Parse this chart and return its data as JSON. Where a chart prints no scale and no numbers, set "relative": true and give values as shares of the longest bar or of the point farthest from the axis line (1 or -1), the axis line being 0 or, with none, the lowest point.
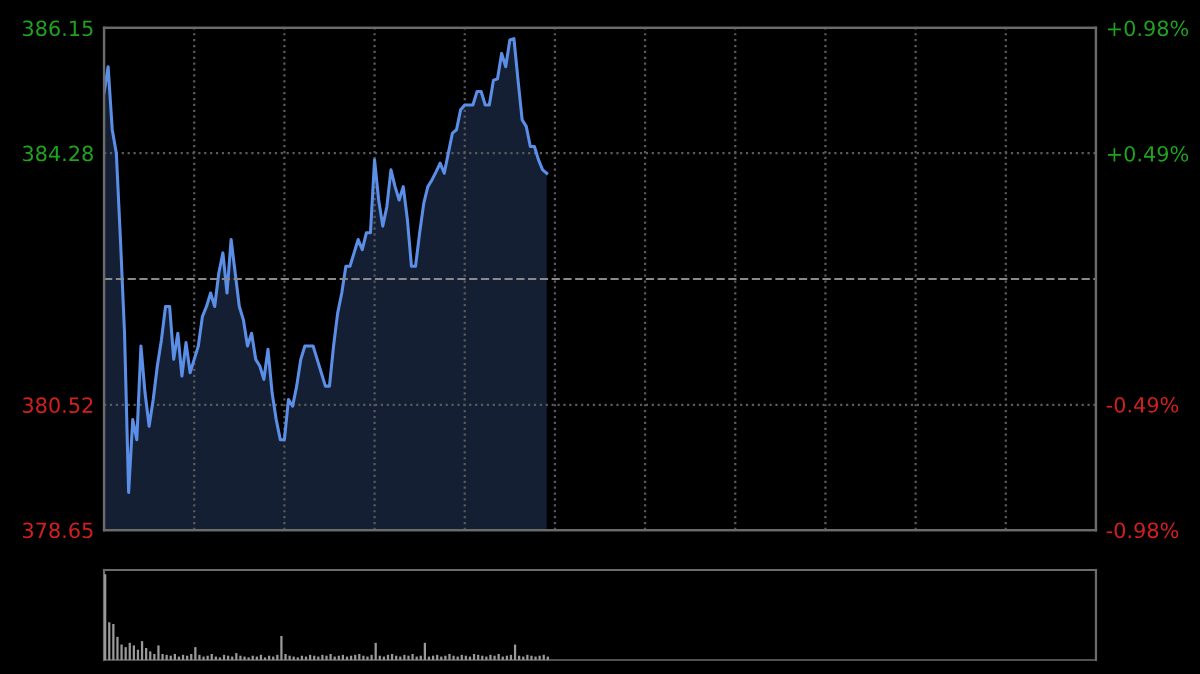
{
  "chart_data": [
    {
      "type": "area",
      "categories": [
        null,
        null,
        null,
        null,
        null,
        null,
        null,
        null,
        null,
        null,
        null,
        null,
        null,
        null,
        null,
        null,
        null,
        null,
        null,
        null,
        null,
        null,
        null,
        null,
        null,
        null,
        null,
        null,
        null,
        null,
        null,
        null,
        null,
        null,
        null,
        null,
        null,
        null,
        null,
        null,
        null,
        null,
        null,
        null,
        null,
        null,
        null,
        null,
        null,
        null,
        null,
        null,
        null,
        null,
        null,
        null,
        null,
        null,
        null,
        null,
        null,
        null,
        null,
        null,
        null,
        null,
        null,
        null,
        null,
        null,
        null,
        null,
        null,
        null,
        null,
        null,
        null,
        null,
        null,
        null,
        null,
        null,
        null,
        null,
        null,
        null,
        null,
        null,
        null,
        null,
        null,
        null,
        null,
        null,
        null,
        null,
        null,
        null,
        null,
        null,
        null,
        null,
        null,
        null,
        null,
        null,
        null,
        null,
        null,
        null,
        null,
        null,
        null,
        null,
        null,
        null,
        null,
        null,
        null,
        null,
        null,
        null,
        null,
        null,
        null,
        null,
        null,
        null,
        null,
        null,
        null,
        null,
        null,
        null,
        null,
        null,
        null,
        null,
        null,
        null,
        null,
        null,
        null,
        null,
        null,
        null,
        null,
        null,
        null,
        null,
        null,
        null,
        null,
        null,
        null,
        null,
        null,
        null,
        null,
        null,
        null,
        null,
        null,
        null,
        null,
        null,
        null,
        null,
        null,
        null,
        null,
        null,
        null,
        null,
        null,
        null,
        null,
        null,
        null,
        null,
        null,
        null,
        null,
        null,
        null,
        null,
        null,
        null,
        null,
        null,
        null,
        null,
        null,
        null,
        null,
        null,
        null,
        null,
        null,
        null,
        null,
        null,
        null,
        null,
        null,
        null,
        null,
        null,
        null,
        null,
        null,
        null,
        null,
        null,
        null,
        null,
        null,
        null,
        null,
        null,
        null,
        null,
        null,
        null,
        null,
        null,
        null,
        null,
        null,
        null,
        null,
        null,
        null,
        null,
        null,
        null,
        null,
        null,
        null,
        null,
        null,
        null,
        null
      ],
      "ylim": [
        378.65,
        386.15
      ],
      "yticks": [
        378.65,
        380.52,
        384.28,
        386.15
      ],
      "y2lim": [
        -0.98,
        0.98
      ],
      "y2ticks": [
        {
          "value": -0.98,
          "label": "-0.98%"
        },
        {
          "value": -0.49,
          "label": "-0.49%"
        },
        {
          "value": 0.49,
          "label": "+0.49%"
        },
        {
          "value": 0.98,
          "label": "+0.98%"
        }
      ],
      "grid": true,
      "ref_lines": [
        {
          "axis": "y",
          "value": 382.4,
          "line_style": "dashed",
          "color": "#8a8a8a"
        }
      ],
      "series": [
        {
          "color": "#5b8ee6",
          "values": [
            385.18,
            385.57,
            384.63,
            384.28,
            382.99,
            381.59,
            379.21,
            380.3,
            380.0,
            381.4,
            380.7,
            380.2,
            380.6,
            381.1,
            381.49,
            381.99,
            381.99,
            381.2,
            381.59,
            380.95,
            381.45,
            381.0,
            381.2,
            381.4,
            381.84,
            381.99,
            382.19,
            381.99,
            382.49,
            382.79,
            382.19,
            382.99,
            382.49,
            381.99,
            381.79,
            381.4,
            381.59,
            381.2,
            381.1,
            380.9,
            381.35,
            380.7,
            380.3,
            380.0,
            380.0,
            380.6,
            380.5,
            380.8,
            381.2,
            381.4,
            381.4,
            381.4,
            381.2,
            381.0,
            380.8,
            380.8,
            381.4,
            381.89,
            382.19,
            382.59,
            382.59,
            382.79,
            382.99,
            382.84,
            383.09,
            383.09,
            384.18,
            383.58,
            383.19,
            383.48,
            384.03,
            383.78,
            383.58,
            383.78,
            383.29,
            382.59,
            382.59,
            383.09,
            383.53,
            383.78,
            383.88,
            384.0,
            384.13,
            383.98,
            384.28,
            384.58,
            384.63,
            384.93,
            385.0,
            385.0,
            385.0,
            385.2,
            385.2,
            385.0,
            385.0,
            385.37,
            385.39,
            385.77,
            385.57,
            385.97,
            385.99,
            385.37,
            384.78,
            384.68,
            384.38,
            384.38,
            384.18,
            384.03,
            383.98,
            null,
            null,
            null,
            null,
            null,
            null,
            null,
            null,
            null,
            null,
            null,
            null,
            null,
            null,
            null,
            null,
            null,
            null,
            null,
            null,
            null,
            null,
            null,
            null,
            null,
            null,
            null,
            null,
            null,
            null,
            null,
            null,
            null,
            null,
            null,
            null,
            null,
            null,
            null,
            null,
            null,
            null,
            null,
            null,
            null,
            null,
            null,
            null,
            null,
            null,
            null,
            null,
            null,
            null,
            null,
            null,
            null,
            null,
            null,
            null,
            null,
            null,
            null,
            null,
            null,
            null,
            null,
            null,
            null,
            null,
            null,
            null,
            null,
            null,
            null,
            null,
            null,
            null,
            null,
            null,
            null,
            null,
            null,
            null,
            null,
            null,
            null,
            null,
            null,
            null,
            null,
            null,
            null,
            null,
            null,
            null,
            null,
            null,
            null,
            null,
            null,
            null,
            null,
            null,
            null,
            null,
            null,
            null,
            null,
            null,
            null,
            null,
            null,
            null,
            null,
            null,
            null,
            null,
            null,
            null,
            null,
            null,
            null,
            null,
            null,
            null,
            null,
            null,
            null,
            null,
            null,
            null,
            null,
            null
          ]
        }
      ]
    },
    {
      "type": "bar",
      "relative": true,
      "color": "#9a9a9a",
      "categories": [
        null,
        null,
        null,
        null,
        null,
        null,
        null,
        null,
        null,
        null,
        null,
        null,
        null,
        null,
        null,
        null,
        null,
        null,
        null,
        null,
        null,
        null,
        null,
        null,
        null,
        null,
        null,
        null,
        null,
        null,
        null,
        null,
        null,
        null,
        null,
        null,
        null,
        null,
        null,
        null,
        null,
        null,
        null,
        null,
        null,
        null,
        null,
        null,
        null,
        null,
        null,
        null,
        null,
        null,
        null,
        null,
        null,
        null,
        null,
        null,
        null,
        null,
        null,
        null,
        null,
        null,
        null,
        null,
        null,
        null,
        null,
        null,
        null,
        null,
        null,
        null,
        null,
        null,
        null,
        null,
        null,
        null,
        null,
        null,
        null,
        null,
        null,
        null,
        null,
        null,
        null,
        null,
        null,
        null,
        null,
        null,
        null,
        null,
        null,
        null,
        null,
        null,
        null,
        null,
        null,
        null,
        null,
        null,
        null,
        null,
        null,
        null,
        null,
        null,
        null,
        null,
        null,
        null,
        null,
        null,
        null,
        null,
        null,
        null,
        null,
        null,
        null,
        null,
        null,
        null,
        null,
        null,
        null,
        null,
        null,
        null,
        null,
        null,
        null,
        null,
        null,
        null,
        null,
        null,
        null,
        null,
        null,
        null,
        null,
        null,
        null,
        null,
        null,
        null,
        null,
        null,
        null,
        null,
        null,
        null,
        null,
        null,
        null,
        null,
        null,
        null,
        null,
        null,
        null,
        null,
        null,
        null,
        null,
        null,
        null,
        null,
        null,
        null,
        null,
        null,
        null,
        null,
        null,
        null,
        null,
        null,
        null,
        null,
        null,
        null,
        null,
        null,
        null,
        null,
        null,
        null,
        null,
        null,
        null,
        null,
        null,
        null,
        null,
        null,
        null,
        null,
        null,
        null,
        null,
        null,
        null,
        null,
        null,
        null,
        null,
        null,
        null,
        null,
        null,
        null,
        null,
        null,
        null,
        null,
        null,
        null,
        null,
        null,
        null,
        null,
        null,
        null,
        null,
        null,
        null,
        null,
        null,
        null,
        null,
        null,
        null,
        null,
        null
      ],
      "values": [
        1.0,
        0.44,
        0.42,
        0.27,
        0.18,
        0.15,
        0.2,
        0.17,
        0.12,
        0.22,
        0.14,
        0.1,
        0.07,
        0.17,
        0.07,
        0.06,
        0.05,
        0.07,
        0.04,
        0.06,
        0.05,
        0.07,
        0.15,
        0.06,
        0.04,
        0.05,
        0.07,
        0.04,
        0.03,
        0.06,
        0.05,
        0.04,
        0.08,
        0.05,
        0.04,
        0.03,
        0.05,
        0.04,
        0.06,
        0.03,
        0.05,
        0.04,
        0.06,
        0.28,
        0.07,
        0.05,
        0.04,
        0.03,
        0.05,
        0.04,
        0.06,
        0.05,
        0.04,
        0.06,
        0.05,
        0.07,
        0.04,
        0.05,
        0.06,
        0.04,
        0.05,
        0.06,
        0.07,
        0.05,
        0.04,
        0.06,
        0.2,
        0.05,
        0.04,
        0.06,
        0.07,
        0.05,
        0.04,
        0.06,
        0.05,
        0.07,
        0.04,
        0.05,
        0.2,
        0.04,
        0.05,
        0.06,
        0.04,
        0.05,
        0.07,
        0.05,
        0.04,
        0.06,
        0.05,
        0.04,
        0.07,
        0.06,
        0.05,
        0.04,
        0.06,
        0.05,
        0.07,
        0.04,
        0.05,
        0.06,
        0.18,
        0.05,
        0.04,
        0.06,
        0.05,
        0.04,
        0.05,
        0.06,
        0.04,
        null,
        null,
        null,
        null,
        null,
        null,
        null,
        null,
        null,
        null,
        null,
        null,
        null,
        null,
        null,
        null,
        null,
        null,
        null,
        null,
        null,
        null,
        null,
        null,
        null,
        null,
        null,
        null,
        null,
        null,
        null,
        null,
        null,
        null,
        null,
        null,
        null,
        null,
        null,
        null,
        null,
        null,
        null,
        null,
        null,
        null,
        null,
        null,
        null,
        null,
        null,
        null,
        null,
        null,
        null,
        null,
        null,
        null,
        null,
        null,
        null,
        null,
        null,
        null,
        null,
        null,
        null,
        null,
        null,
        null,
        null,
        null,
        null,
        null,
        null,
        null,
        null,
        null,
        null,
        null,
        null,
        null,
        null,
        null,
        null,
        null,
        null,
        null,
        null,
        null,
        null,
        null,
        null,
        null,
        null,
        null,
        null,
        null,
        null,
        null,
        null,
        null,
        null,
        null,
        null,
        null,
        null,
        null,
        null,
        null,
        null,
        null,
        null,
        null,
        null,
        null,
        null,
        null,
        null,
        null,
        null,
        null,
        null,
        null,
        null,
        null,
        null,
        null,
        null,
        null,
        null,
        null,
        null,
        null
      ]
    }
  ]
}
